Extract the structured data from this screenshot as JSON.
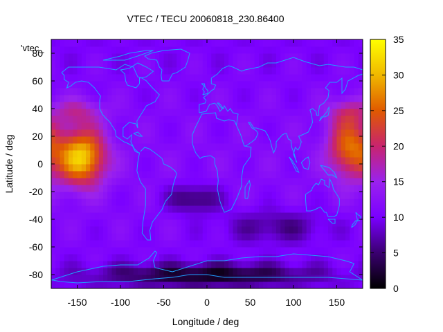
{
  "chart_data": {
    "type": "heatmap",
    "title": "VTEC / TECU 20060818_230.86400",
    "xlabel": "Longitude / deg",
    "ylabel": "Latitude / deg",
    "xlim": [
      -180,
      180
    ],
    "ylim": [
      -90,
      90
    ],
    "x_ticks": [
      -150,
      -100,
      -50,
      0,
      50,
      100,
      150
    ],
    "y_ticks": [
      -80,
      -60,
      -40,
      -20,
      0,
      20,
      40,
      60,
      80
    ],
    "colorbar": {
      "min": 0,
      "max": 35,
      "ticks": [
        0,
        5,
        10,
        15,
        20,
        25,
        30,
        35
      ]
    },
    "key_label": "'vtec_",
    "colormap": [
      "#000000",
      "#3a0070",
      "#7a00ff",
      "#9a22ee",
      "#c8246e",
      "#e05a00",
      "#f0b800",
      "#ffff00"
    ],
    "grid": false,
    "overlay": "coastlines",
    "coastline_color": "#1f9fff",
    "field": {
      "background": 11,
      "features": [
        {
          "region": "pacific-equatorial-crest",
          "lon_center": -145,
          "lat_center": 5,
          "peak": 31
        },
        {
          "region": "western-pacific-crest",
          "lon_center": 165,
          "lat_center": 12,
          "peak": 25
        },
        {
          "region": "antarctic-minimum",
          "lon_center": 0,
          "lat_center": -80,
          "peak": 1
        },
        {
          "region": "south-atlantic-minimum",
          "lon_center": -15,
          "lat_center": -25,
          "peak": 5
        }
      ]
    }
  }
}
